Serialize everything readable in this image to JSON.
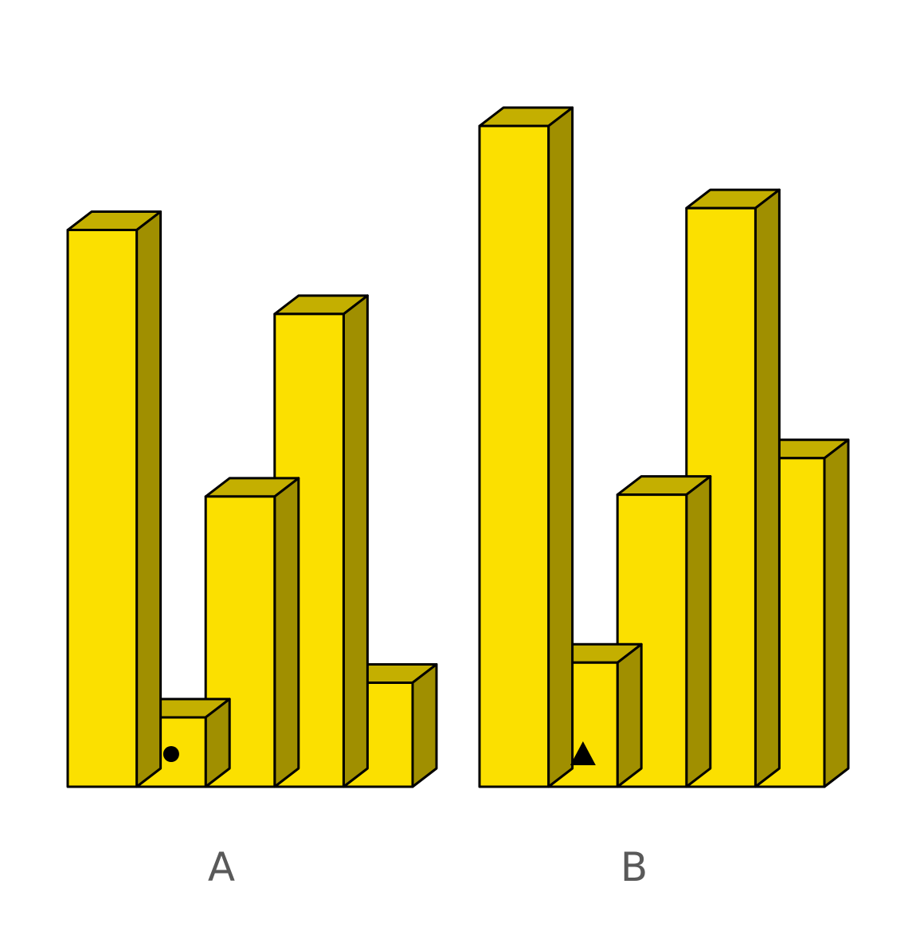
{
  "colors": {
    "front": "#FBE000",
    "top": "#C4AF00",
    "side": "#A08F00",
    "outline": "#000000",
    "label": "#595959",
    "marker": "#000000"
  },
  "chart_data": [
    {
      "type": "bar",
      "style": "3d-block",
      "label": "A",
      "values": [
        30.5,
        3.8,
        15.9,
        25.9,
        5.7
      ],
      "marker": {
        "bar_index": 1,
        "shape": "circle"
      },
      "ylim": [
        0,
        36.2
      ]
    },
    {
      "type": "bar",
      "style": "3d-block",
      "label": "B",
      "values": [
        36.2,
        6.8,
        16.0,
        31.7,
        18.0
      ],
      "marker": {
        "bar_index": 1,
        "shape": "triangle"
      },
      "ylim": [
        0,
        36.2
      ]
    }
  ]
}
